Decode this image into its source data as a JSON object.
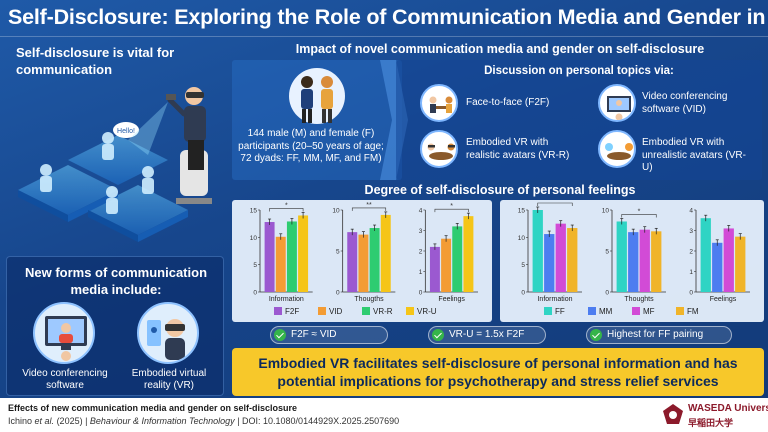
{
  "title": "Self-Disclosure: Exploring the Role of Communication Media and Gender in Cyberspace",
  "left": {
    "top_title": "Self-disclosure is vital for communication",
    "speech_bubble": "Hello!",
    "new_forms_title": "New forms of communication media include:",
    "forms": [
      {
        "label": "Video conferencing software",
        "icon": "video-call-icon"
      },
      {
        "label": "Embodied virtual reality (VR)",
        "icon": "vr-headset-icon"
      }
    ]
  },
  "impact": {
    "title": "Impact of novel communication media and gender on self-disclosure",
    "participants": "144 male (M) and female (F) participants (20–50 years of age; 72 dyads: FF, MM, MF, and FM)",
    "discussion_title": "Discussion on personal topics via:",
    "media": [
      {
        "label": "Face-to-face (F2F)",
        "icon": "face-to-face-icon"
      },
      {
        "label": "Video conferencing software (VID)",
        "icon": "video-conference-icon"
      },
      {
        "label": "Embodied VR with realistic avatars (VR-R)",
        "icon": "vr-realistic-icon"
      },
      {
        "label": "Embodied VR with unrealistic avatars (VR-U)",
        "icon": "vr-unrealistic-icon"
      }
    ]
  },
  "degree_title": "Degree of self-disclosure of personal feelings",
  "colors": {
    "F2F": "#9b59d0",
    "VID": "#f39c34",
    "VR-R": "#2ecc71",
    "VR-U": "#f5c518",
    "FF": "#2fd4c4",
    "MM": "#4d7df0",
    "MF": "#d24bd6",
    "FM": "#f0b429",
    "accent": "#f7c82a"
  },
  "chart_data": [
    {
      "type": "bar",
      "categories": [
        "Information",
        "Thougths",
        "Feelings"
      ],
      "series": [
        {
          "name": "F2F",
          "values": [
            12.8,
            7.3,
            2.2
          ]
        },
        {
          "name": "VID",
          "values": [
            10.1,
            7.0,
            2.6
          ]
        },
        {
          "name": "VR-R",
          "values": [
            12.9,
            7.8,
            3.2
          ]
        },
        {
          "name": "VR-U",
          "values": [
            14.0,
            9.4,
            3.7
          ]
        }
      ],
      "panel_ylims": [
        [
          0,
          15
        ],
        [
          0,
          10
        ],
        [
          0,
          4
        ]
      ],
      "panel_ticks": [
        [
          0,
          5,
          10,
          15
        ],
        [
          0,
          5,
          10
        ],
        [
          0,
          1,
          2,
          3,
          4
        ]
      ],
      "significance": [
        "*",
        "**",
        "*"
      ]
    },
    {
      "type": "bar",
      "categories": [
        "Information",
        "Thoughts",
        "Feelings"
      ],
      "series": [
        {
          "name": "FF",
          "values": [
            15.0,
            8.6,
            3.6
          ]
        },
        {
          "name": "MM",
          "values": [
            10.6,
            7.3,
            2.4
          ]
        },
        {
          "name": "MF",
          "values": [
            12.5,
            7.6,
            3.1
          ]
        },
        {
          "name": "FM",
          "values": [
            11.7,
            7.4,
            2.7
          ]
        }
      ],
      "panel_ylims": [
        [
          0,
          15
        ],
        [
          0,
          10
        ],
        [
          0,
          4
        ]
      ],
      "panel_ticks": [
        [
          0,
          5,
          10,
          15
        ],
        [
          0,
          5,
          10
        ],
        [
          0,
          1,
          2,
          3,
          4
        ]
      ],
      "significance": [
        "***",
        "*"
      ]
    }
  ],
  "results": [
    "F2F ≈ VID",
    "VR-U = 1.5x F2F",
    "Highest for FF pairing"
  ],
  "conclusion": "Embodied VR facilitates self-disclosure of personal information and has potential implications for psychotherapy and stress relief services",
  "footer": {
    "title": "Effects of new communication media and gender on self-disclosure",
    "authors": "Ichino",
    "etal": "et al.",
    "year": " (2025) | ",
    "journal": "Behaviour & Information Technology",
    "doi": " | DOI: 10.1080/0144929X.2025.2507690",
    "university_en": "WASEDA University",
    "university_jp": "早稲田大学"
  }
}
